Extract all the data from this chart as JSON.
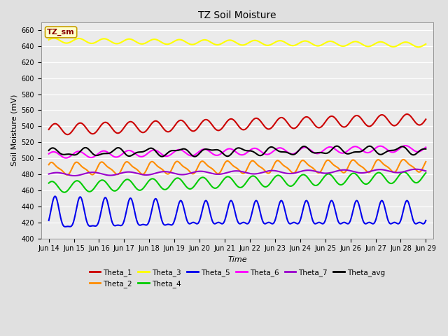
{
  "title": "TZ Soil Moisture",
  "xlabel": "Time",
  "ylabel": "Soil Moisture (mV)",
  "ylim": [
    400,
    670
  ],
  "yticks": [
    400,
    420,
    440,
    460,
    480,
    500,
    520,
    540,
    560,
    580,
    600,
    620,
    640,
    660
  ],
  "bg_color": "#e0e0e0",
  "plot_bg_color": "#ebebeb",
  "grid_color": "#ffffff",
  "label_box": "TZ_sm",
  "label_box_bg": "#ffffcc",
  "label_box_border": "#c8a000",
  "label_box_text": "#880000",
  "series_order": [
    "Theta_1",
    "Theta_2",
    "Theta_3",
    "Theta_4",
    "Theta_5",
    "Theta_6",
    "Theta_7",
    "Theta_avg"
  ],
  "series": {
    "Theta_1": {
      "color": "#cc0000",
      "base": 536,
      "amp": 7,
      "trend": 0.85,
      "freq": 1.0,
      "phase": 0.0,
      "amp2": 0,
      "freq2": 0,
      "phase2": 0
    },
    "Theta_2": {
      "color": "#ff8c00",
      "base": 487,
      "amp": 7,
      "trend": 0.25,
      "freq": 1.0,
      "phase": 0.5,
      "amp2": 2,
      "freq2": 2.0,
      "phase2": 1.0
    },
    "Theta_3": {
      "color": "#ffff00",
      "base": 647,
      "amp": 3,
      "trend": -0.35,
      "freq": 1.0,
      "phase": 0.3,
      "amp2": 0,
      "freq2": 0,
      "phase2": 0
    },
    "Theta_4": {
      "color": "#00cc00",
      "base": 464,
      "amp": 7,
      "trend": 0.85,
      "freq": 1.0,
      "phase": 0.8,
      "amp2": 0,
      "freq2": 0,
      "phase2": 0
    },
    "Theta_5": {
      "color": "#0000ee",
      "base": 428,
      "amp": 16,
      "trend": 0.0,
      "freq": 1.0,
      "phase": 0.0,
      "amp2": 0,
      "freq2": 0,
      "phase2": 0,
      "jagged": true
    },
    "Theta_6": {
      "color": "#ff00ff",
      "base": 504,
      "amp": 4,
      "trend": 0.55,
      "freq": 1.0,
      "phase": 0.4,
      "amp2": 0,
      "freq2": 0,
      "phase2": 0
    },
    "Theta_7": {
      "color": "#9900cc",
      "base": 480,
      "amp": 2,
      "trend": 0.3,
      "freq": 0.7,
      "phase": 0.2,
      "amp2": 0,
      "freq2": 0,
      "phase2": 0
    },
    "Theta_avg": {
      "color": "#000000",
      "base": 507,
      "amp": 4,
      "trend": 0.2,
      "freq": 0.8,
      "phase": 0.6,
      "amp2": 2,
      "freq2": 1.5,
      "phase2": 0.3
    }
  },
  "xtick_labels": [
    "Jun 14",
    "Jun 15",
    "Jun 16",
    "Jun 17",
    "Jun 18",
    "Jun 19",
    "Jun 20",
    "Jun 21",
    "Jun 22",
    "Jun 23",
    "Jun 24",
    "Jun 25",
    "Jun 26",
    "Jun 27",
    "Jun 28",
    "Jun 29"
  ],
  "xtick_positions": [
    0,
    1,
    2,
    3,
    4,
    5,
    6,
    7,
    8,
    9,
    10,
    11,
    12,
    13,
    14,
    15
  ]
}
